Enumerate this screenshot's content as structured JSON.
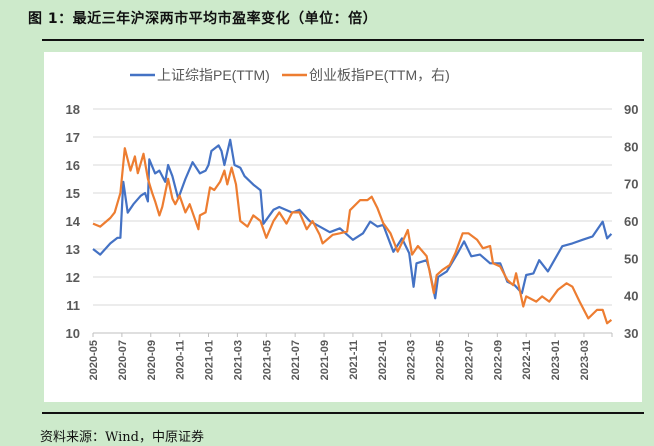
{
  "title": "图 1：最近三年沪深两市平均市盈率变化（单位：倍）",
  "source": "资料来源：Wind，中原证券",
  "chart_data": {
    "type": "line",
    "title": "最近三年沪深两市平均市盈率变化（单位：倍）",
    "x_unit": "months since 2020-05",
    "x_tick_labels": [
      "2020-05",
      "2020-07",
      "2020-09",
      "2020-11",
      "2021-01",
      "2021-03",
      "2021-05",
      "2021-07",
      "2021-09",
      "2021-11",
      "2022-01",
      "2022-03",
      "2022-05",
      "2022-07",
      "2022-09",
      "2022-11",
      "2023-01",
      "2023-03"
    ],
    "y_left": {
      "range": [
        10,
        18
      ],
      "ticks": [
        "10",
        "11",
        "12",
        "13",
        "14",
        "15",
        "16",
        "17",
        "18"
      ]
    },
    "y_right": {
      "range": [
        30,
        90
      ],
      "ticks": [
        "30",
        "40",
        "50",
        "60",
        "70",
        "80",
        "90"
      ]
    },
    "grid": true,
    "legend_position": "top",
    "series": [
      {
        "name": "上证综指PE(TTM)",
        "axis": "left",
        "color": "#4472c4",
        "points": [
          [
            0,
            13.0
          ],
          [
            0.5,
            12.8
          ],
          [
            1.2,
            13.2
          ],
          [
            1.7,
            13.4
          ],
          [
            1.9,
            13.4
          ],
          [
            2.1,
            15.4
          ],
          [
            2.4,
            14.3
          ],
          [
            2.8,
            14.6
          ],
          [
            3.3,
            14.9
          ],
          [
            3.6,
            15.0
          ],
          [
            3.8,
            14.7
          ],
          [
            3.9,
            16.2
          ],
          [
            4.3,
            15.7
          ],
          [
            4.6,
            15.8
          ],
          [
            5.0,
            15.4
          ],
          [
            5.2,
            16.0
          ],
          [
            5.5,
            15.6
          ],
          [
            5.9,
            14.8
          ],
          [
            6.4,
            15.5
          ],
          [
            6.9,
            16.1
          ],
          [
            7.4,
            15.7
          ],
          [
            7.8,
            15.8
          ],
          [
            8.0,
            16.0
          ],
          [
            8.2,
            16.5
          ],
          [
            8.7,
            16.7
          ],
          [
            8.9,
            16.5
          ],
          [
            9.1,
            16.0
          ],
          [
            9.5,
            16.9
          ],
          [
            9.8,
            16.0
          ],
          [
            10.2,
            15.9
          ],
          [
            10.5,
            15.6
          ],
          [
            11.1,
            15.3
          ],
          [
            11.6,
            15.1
          ],
          [
            11.8,
            13.9
          ],
          [
            12.5,
            14.4
          ],
          [
            12.9,
            14.5
          ],
          [
            13.8,
            14.3
          ],
          [
            14.3,
            14.4
          ],
          [
            15.0,
            14.0
          ],
          [
            15.7,
            13.8
          ],
          [
            16.4,
            13.6
          ],
          [
            17.1,
            13.74
          ],
          [
            18.0,
            13.33
          ],
          [
            18.7,
            13.56
          ],
          [
            19.2,
            13.98
          ],
          [
            19.7,
            13.8
          ],
          [
            20.1,
            13.86
          ],
          [
            20.8,
            12.9
          ],
          [
            21.4,
            13.38
          ],
          [
            21.9,
            12.85
          ],
          [
            22.2,
            11.65
          ],
          [
            22.4,
            12.49
          ],
          [
            23.1,
            12.6
          ],
          [
            23.3,
            12.25
          ],
          [
            23.7,
            11.24
          ],
          [
            23.9,
            12.0
          ],
          [
            24.5,
            12.2
          ],
          [
            25.2,
            12.8
          ],
          [
            25.7,
            13.27
          ],
          [
            26.2,
            12.74
          ],
          [
            26.8,
            12.8
          ],
          [
            27.5,
            12.49
          ],
          [
            28.2,
            12.49
          ],
          [
            28.7,
            11.83
          ],
          [
            29.2,
            11.71
          ],
          [
            29.7,
            11.42
          ],
          [
            30.0,
            12.07
          ],
          [
            30.5,
            12.13
          ],
          [
            30.9,
            12.6
          ],
          [
            31.5,
            12.2
          ],
          [
            32.1,
            12.74
          ],
          [
            32.5,
            13.1
          ],
          [
            33.2,
            13.2
          ],
          [
            33.9,
            13.33
          ],
          [
            34.6,
            13.45
          ],
          [
            35.3,
            13.98
          ],
          [
            35.6,
            13.38
          ],
          [
            35.9,
            13.54
          ]
        ]
      },
      {
        "name": "创业板指PE(TTM，右)",
        "axis": "right",
        "color": "#ed7d31",
        "points": [
          [
            0,
            59.3
          ],
          [
            0.5,
            58.5
          ],
          [
            1.2,
            60.8
          ],
          [
            1.5,
            62.3
          ],
          [
            1.9,
            67.5
          ],
          [
            2.2,
            79.5
          ],
          [
            2.6,
            73.5
          ],
          [
            2.9,
            77.3
          ],
          [
            3.1,
            72.8
          ],
          [
            3.5,
            78.0
          ],
          [
            3.8,
            71.3
          ],
          [
            4.1,
            67.5
          ],
          [
            4.3,
            65.3
          ],
          [
            4.6,
            61.5
          ],
          [
            4.8,
            63.8
          ],
          [
            5.2,
            71.3
          ],
          [
            5.5,
            66.0
          ],
          [
            5.7,
            64.5
          ],
          [
            6.0,
            66.8
          ],
          [
            6.4,
            62.3
          ],
          [
            6.7,
            64.5
          ],
          [
            7.3,
            57.8
          ],
          [
            7.4,
            61.5
          ],
          [
            7.8,
            62.3
          ],
          [
            8.1,
            69.0
          ],
          [
            8.4,
            68.3
          ],
          [
            8.8,
            70.5
          ],
          [
            9.1,
            73.5
          ],
          [
            9.3,
            69.8
          ],
          [
            9.6,
            74.3
          ],
          [
            9.9,
            69.8
          ],
          [
            10.2,
            60.0
          ],
          [
            10.7,
            58.5
          ],
          [
            11.1,
            61.5
          ],
          [
            11.6,
            60.0
          ],
          [
            12.0,
            55.5
          ],
          [
            12.5,
            60.0
          ],
          [
            12.9,
            62.3
          ],
          [
            13.4,
            59.3
          ],
          [
            13.8,
            62.3
          ],
          [
            14.3,
            62.3
          ],
          [
            14.8,
            57.8
          ],
          [
            15.2,
            60.0
          ],
          [
            15.7,
            56.3
          ],
          [
            15.9,
            54.0
          ],
          [
            16.6,
            56.3
          ],
          [
            17.1,
            56.7
          ],
          [
            17.6,
            57.2
          ],
          [
            17.8,
            62.9
          ],
          [
            18.5,
            65.6
          ],
          [
            19.0,
            65.6
          ],
          [
            19.3,
            66.5
          ],
          [
            19.7,
            63.4
          ],
          [
            20.1,
            59.4
          ],
          [
            20.6,
            56.7
          ],
          [
            21.1,
            51.8
          ],
          [
            21.5,
            55.0
          ],
          [
            21.8,
            57.6
          ],
          [
            22.1,
            51.0
          ],
          [
            22.5,
            53.3
          ],
          [
            23.1,
            50.6
          ],
          [
            23.6,
            40.7
          ],
          [
            23.8,
            45.5
          ],
          [
            24.2,
            46.9
          ],
          [
            24.7,
            48.2
          ],
          [
            25.1,
            51.4
          ],
          [
            25.6,
            56.7
          ],
          [
            26.0,
            56.7
          ],
          [
            26.6,
            55.0
          ],
          [
            27.0,
            52.7
          ],
          [
            27.5,
            53.3
          ],
          [
            27.7,
            48.7
          ],
          [
            28.2,
            47.8
          ],
          [
            28.7,
            44.2
          ],
          [
            29.1,
            42.8
          ],
          [
            29.3,
            46.0
          ],
          [
            29.8,
            37.1
          ],
          [
            30.0,
            39.8
          ],
          [
            30.7,
            38.4
          ],
          [
            31.1,
            39.8
          ],
          [
            31.6,
            38.4
          ],
          [
            32.2,
            41.6
          ],
          [
            32.8,
            43.3
          ],
          [
            33.2,
            42.4
          ],
          [
            33.7,
            38.4
          ],
          [
            34.3,
            33.9
          ],
          [
            34.9,
            36.2
          ],
          [
            35.3,
            36.2
          ],
          [
            35.6,
            32.6
          ],
          [
            35.9,
            33.5
          ]
        ]
      }
    ]
  }
}
